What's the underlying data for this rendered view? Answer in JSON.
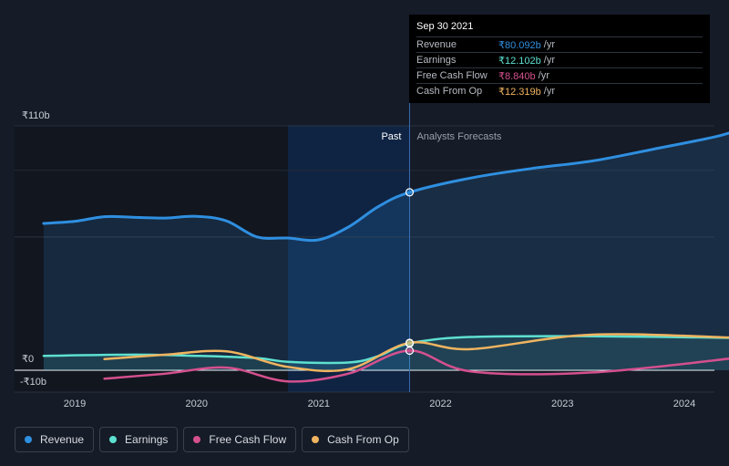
{
  "chart_data": {
    "type": "line",
    "y_tick_labels": [
      "₹110b",
      "₹0",
      "-₹10b"
    ],
    "ylim": [
      -10,
      110
    ],
    "x_tick_labels": [
      "2019",
      "2020",
      "2021",
      "2022",
      "2023",
      "2024"
    ],
    "region_labels": {
      "past": "Past",
      "forecast": "Analysts Forecasts"
    },
    "divider_date": "2021-09-30",
    "series": [
      {
        "name": "Revenue",
        "color": "#2f8fe0",
        "points": [
          [
            "2018-09-30",
            66.1
          ],
          [
            "2018-12-31",
            67.0
          ],
          [
            "2019-03-31",
            69.1
          ],
          [
            "2019-06-30",
            68.8
          ],
          [
            "2019-09-30",
            68.5
          ],
          [
            "2019-12-31",
            69.3
          ],
          [
            "2020-03-31",
            67.2
          ],
          [
            "2020-06-30",
            60.0
          ],
          [
            "2020-09-30",
            59.5
          ],
          [
            "2020-12-31",
            58.7
          ],
          [
            "2021-03-31",
            64.5
          ],
          [
            "2021-06-30",
            73.8
          ],
          [
            "2021-09-30",
            80.092
          ],
          [
            "2022-03-31",
            86.5
          ],
          [
            "2022-09-30",
            90.8
          ],
          [
            "2023-03-31",
            94.2
          ],
          [
            "2023-09-30",
            99.5
          ],
          [
            "2024-03-31",
            105.0
          ],
          [
            "2024-06-30",
            109.0
          ]
        ]
      },
      {
        "name": "Earnings",
        "color": "#5ee0d0",
        "points": [
          [
            "2018-09-30",
            6.5
          ],
          [
            "2019-06-30",
            7.0
          ],
          [
            "2019-12-31",
            6.5
          ],
          [
            "2020-06-30",
            5.5
          ],
          [
            "2020-09-30",
            3.8
          ],
          [
            "2021-03-31",
            3.5
          ],
          [
            "2021-06-30",
            6.5
          ],
          [
            "2021-09-30",
            12.102
          ],
          [
            "2022-03-31",
            15.0
          ],
          [
            "2023-03-31",
            15.3
          ],
          [
            "2024-06-30",
            14.5
          ]
        ]
      },
      {
        "name": "Free Cash Flow",
        "color": "#d4508e",
        "points": [
          [
            "2019-03-31",
            -3.8
          ],
          [
            "2019-09-30",
            -1.5
          ],
          [
            "2020-03-31",
            1.2
          ],
          [
            "2020-09-30",
            -5.0
          ],
          [
            "2021-03-31",
            -1.5
          ],
          [
            "2021-09-30",
            8.84
          ],
          [
            "2022-03-31",
            -0.5
          ],
          [
            "2023-03-31",
            -1.0
          ],
          [
            "2024-06-30",
            6.0
          ]
        ]
      },
      {
        "name": "Cash From Op",
        "color": "#f0b460",
        "points": [
          [
            "2019-03-31",
            5.0
          ],
          [
            "2019-09-30",
            7.0
          ],
          [
            "2020-03-31",
            8.5
          ],
          [
            "2020-09-30",
            1.5
          ],
          [
            "2021-03-31",
            0.5
          ],
          [
            "2021-09-30",
            12.319
          ],
          [
            "2022-03-31",
            9.5
          ],
          [
            "2023-03-31",
            16.0
          ],
          [
            "2024-06-30",
            14.5
          ]
        ]
      }
    ],
    "legend": [
      "Revenue",
      "Earnings",
      "Free Cash Flow",
      "Cash From Op"
    ],
    "legend_position": "bottom-left"
  },
  "tooltip": {
    "date": "Sep 30 2021",
    "rows": [
      {
        "label": "Revenue",
        "value": "₹80.092b",
        "unit": "/yr",
        "color": "#2f8fe0"
      },
      {
        "label": "Earnings",
        "value": "₹12.102b",
        "unit": "/yr",
        "color": "#5ee0d0"
      },
      {
        "label": "Free Cash Flow",
        "value": "₹8.840b",
        "unit": "/yr",
        "color": "#d4508e"
      },
      {
        "label": "Cash From Op",
        "value": "₹12.319b",
        "unit": "/yr",
        "color": "#f0b460"
      }
    ]
  },
  "legend_items": [
    {
      "label": "Revenue",
      "color": "#2f8fe0"
    },
    {
      "label": "Earnings",
      "color": "#5ee0d0"
    },
    {
      "label": "Free Cash Flow",
      "color": "#d4508e"
    },
    {
      "label": "Cash From Op",
      "color": "#f0b460"
    }
  ]
}
